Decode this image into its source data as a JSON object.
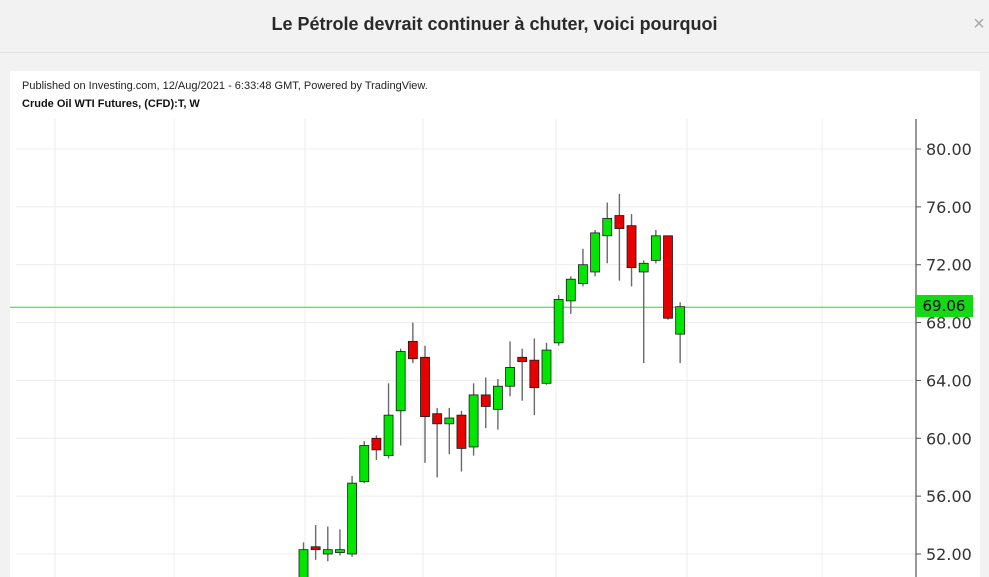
{
  "modal": {
    "title": "Le Pétrole devrait continuer à chuter, voici pourquoi",
    "close_symbol": "×"
  },
  "chart_header": {
    "published": "Published on Investing.com, 12/Aug/2021 - 6:33:48 GMT, Powered by TradingView.",
    "symbol": "Crude Oil WTI Futures, (CFD):T, W"
  },
  "chart_data": {
    "type": "candlestick",
    "ylim": [
      50.4,
      82.6
    ],
    "y_ticks": [
      "80.00",
      "76.00",
      "72.00",
      "68.00",
      "64.00",
      "60.00",
      "56.00",
      "52.00"
    ],
    "y_tick_values": [
      80,
      76,
      72,
      68,
      64,
      60,
      56,
      52
    ],
    "last_price": 69.06,
    "last_price_label": "69.06",
    "colors": {
      "up": "#00e600",
      "down": "#e60000",
      "wick": "#6a6a6a",
      "price_line": "#22e022"
    },
    "candles": [
      {
        "o": 50.0,
        "h": 52.8,
        "l": 50.0,
        "c": 52.3
      },
      {
        "o": 52.5,
        "h": 54.0,
        "l": 51.6,
        "c": 52.3
      },
      {
        "o": 52.0,
        "h": 53.9,
        "l": 51.5,
        "c": 52.3
      },
      {
        "o": 52.1,
        "h": 53.7,
        "l": 51.9,
        "c": 52.3
      },
      {
        "o": 52.0,
        "h": 57.4,
        "l": 51.8,
        "c": 56.9
      },
      {
        "o": 57.0,
        "h": 59.8,
        "l": 56.9,
        "c": 59.5
      },
      {
        "o": 60.0,
        "h": 60.2,
        "l": 58.5,
        "c": 59.2
      },
      {
        "o": 58.8,
        "h": 63.8,
        "l": 58.6,
        "c": 61.6
      },
      {
        "o": 61.9,
        "h": 66.2,
        "l": 59.5,
        "c": 66.0
      },
      {
        "o": 66.7,
        "h": 68.0,
        "l": 65.2,
        "c": 65.5
      },
      {
        "o": 65.6,
        "h": 66.4,
        "l": 58.3,
        "c": 61.5
      },
      {
        "o": 61.7,
        "h": 62.1,
        "l": 57.3,
        "c": 61.0
      },
      {
        "o": 61.0,
        "h": 62.1,
        "l": 58.9,
        "c": 61.4
      },
      {
        "o": 61.6,
        "h": 61.9,
        "l": 57.7,
        "c": 59.3
      },
      {
        "o": 59.4,
        "h": 63.8,
        "l": 58.8,
        "c": 63.0
      },
      {
        "o": 63.0,
        "h": 64.2,
        "l": 60.7,
        "c": 62.2
      },
      {
        "o": 62.0,
        "h": 64.1,
        "l": 60.6,
        "c": 63.6
      },
      {
        "o": 63.6,
        "h": 66.7,
        "l": 62.9,
        "c": 64.9
      },
      {
        "o": 65.6,
        "h": 66.2,
        "l": 62.6,
        "c": 65.3
      },
      {
        "o": 65.4,
        "h": 66.9,
        "l": 61.6,
        "c": 63.5
      },
      {
        "o": 63.8,
        "h": 66.6,
        "l": 63.7,
        "c": 66.1
      },
      {
        "o": 66.6,
        "h": 69.9,
        "l": 66.4,
        "c": 69.6
      },
      {
        "o": 69.5,
        "h": 71.2,
        "l": 68.6,
        "c": 71.0
      },
      {
        "o": 70.7,
        "h": 73.1,
        "l": 70.5,
        "c": 72.0
      },
      {
        "o": 71.5,
        "h": 74.4,
        "l": 71.2,
        "c": 74.2
      },
      {
        "o": 74.0,
        "h": 76.3,
        "l": 72.1,
        "c": 75.2
      },
      {
        "o": 75.4,
        "h": 76.9,
        "l": 70.9,
        "c": 74.5
      },
      {
        "o": 74.7,
        "h": 75.5,
        "l": 70.5,
        "c": 71.8
      },
      {
        "o": 71.5,
        "h": 72.3,
        "l": 65.2,
        "c": 72.1
      },
      {
        "o": 72.3,
        "h": 74.4,
        "l": 72.1,
        "c": 74.0
      },
      {
        "o": 74.0,
        "h": 74.0,
        "l": 68.2,
        "c": 68.3
      },
      {
        "o": 67.2,
        "h": 69.4,
        "l": 65.2,
        "c": 69.1
      }
    ]
  }
}
